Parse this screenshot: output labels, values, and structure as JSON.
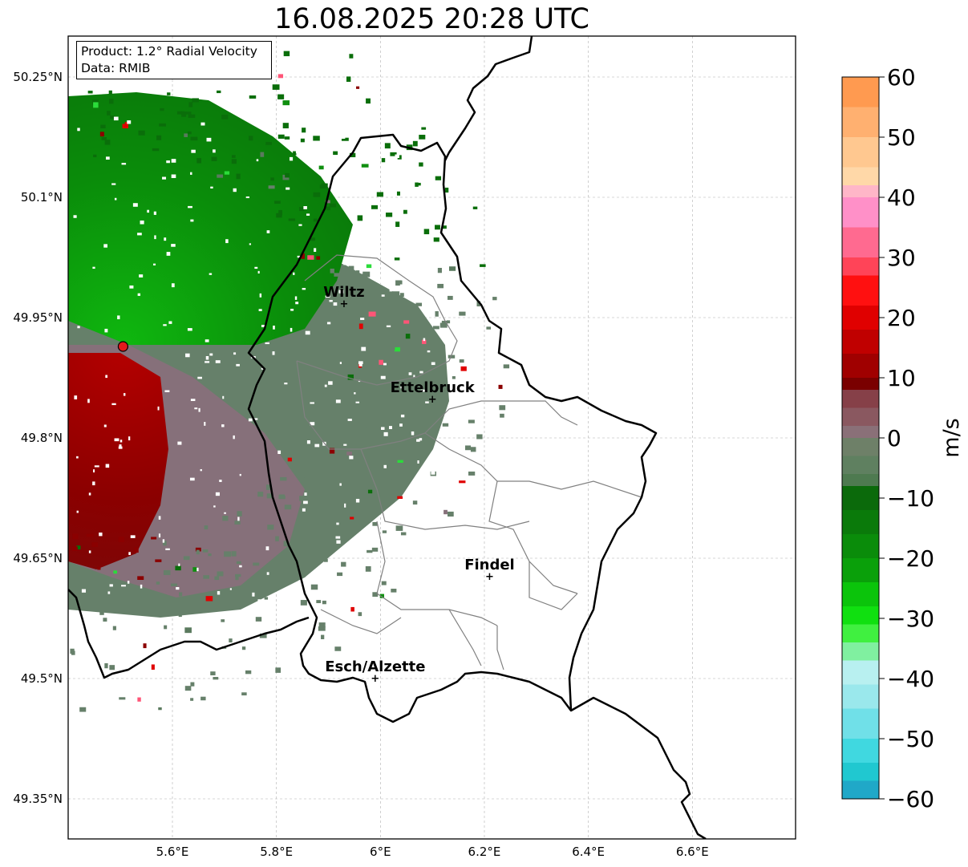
{
  "title": "16.08.2025 20:28 UTC",
  "info": {
    "product": "Product: 1.2° Radial Velocity",
    "data": "Data: RMIB"
  },
  "axes": {
    "lon_ticks": [
      "5.6°E",
      "5.8°E",
      "6°E",
      "6.2°E",
      "6.4°E",
      "6.6°E"
    ],
    "lat_ticks": [
      "50.25°N",
      "50.1°N",
      "49.95°N",
      "49.8°N",
      "49.65°N",
      "49.5°N",
      "49.35°N"
    ],
    "lon_values": [
      5.6,
      5.8,
      6.0,
      6.2,
      6.4,
      6.6
    ],
    "lat_values": [
      50.25,
      50.1,
      49.95,
      49.8,
      49.65,
      49.5,
      49.35
    ]
  },
  "cities": [
    {
      "name": "Wiltz",
      "lon": 5.93,
      "lat": 49.967
    },
    {
      "name": "Ettelbruck",
      "lon": 6.1,
      "lat": 49.848
    },
    {
      "name": "Findel",
      "lon": 6.21,
      "lat": 49.627
    },
    {
      "name": "Esch/Alzette",
      "lon": 5.99,
      "lat": 49.5
    }
  ],
  "radar_site": {
    "lon": 5.505,
    "lat": 49.914,
    "color": "#e31a1c"
  },
  "colorbar": {
    "unit": "m/s",
    "ticks": [
      "60",
      "50",
      "40",
      "30",
      "20",
      "10",
      "0",
      "−10",
      "−20",
      "−30",
      "−40",
      "−50",
      "−60"
    ],
    "vmin": -60,
    "vmax": 60
  },
  "colors": {
    "positive_red": "#8b0000",
    "neutral_gray": "#6f7f6a",
    "negative_green": "#0a6e0a",
    "border": "#000000",
    "canton": "#808080"
  }
}
